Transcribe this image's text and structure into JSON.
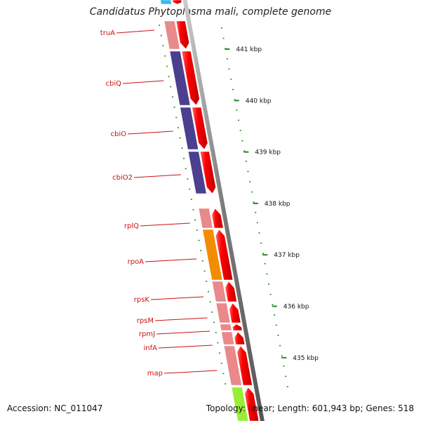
{
  "header": {
    "title": "Candidatus Phytoplasma mali, complete genome"
  },
  "footer": {
    "accession": "Accession: NC_011047",
    "topology": "Topology: linear; Length: 601,943 bp; Genes: 518"
  },
  "colors": {
    "gene_label": "#cc1111",
    "arrow": "#ee1111",
    "scale_tick": "#228822",
    "backbone": "#8a8a8a",
    "cog_pink": "#e9898a",
    "cog_purple": "#4b3f8f",
    "cog_orange": "#f28c00",
    "cog_cyan": "#33bbee",
    "cog_lime": "#99ee33"
  },
  "scale": {
    "unit": "kbp",
    "labels": [
      {
        "kbp": 441,
        "text": "441 kbp"
      },
      {
        "kbp": 440,
        "text": "440 kbp"
      },
      {
        "kbp": 439,
        "text": "439 kbp"
      },
      {
        "kbp": 438,
        "text": "438 kbp"
      },
      {
        "kbp": 437,
        "text": "437 kbp"
      },
      {
        "kbp": 436,
        "text": "436 kbp"
      },
      {
        "kbp": 435,
        "text": "435 kbp"
      }
    ]
  },
  "genes": [
    {
      "name": "truA",
      "cog_color": "#e9898a"
    },
    {
      "name": "cbiQ",
      "cog_color": "#4b3f8f"
    },
    {
      "name": "cbiO",
      "cog_color": "#4b3f8f"
    },
    {
      "name": "cbiO2",
      "cog_color": "#4b3f8f"
    },
    {
      "name": "rplQ",
      "cog_color": "#e9898a"
    },
    {
      "name": "rpoA",
      "cog_color": "#f28c00"
    },
    {
      "name": "rpsK",
      "cog_color": "#e9898a"
    },
    {
      "name": "rpsM",
      "cog_color": "#e9898a"
    },
    {
      "name": "rpmJ",
      "cog_color": "#e9898a"
    },
    {
      "name": "infA",
      "cog_color": "#e9898a"
    },
    {
      "name": "map",
      "cog_color": "#e9898a"
    }
  ]
}
